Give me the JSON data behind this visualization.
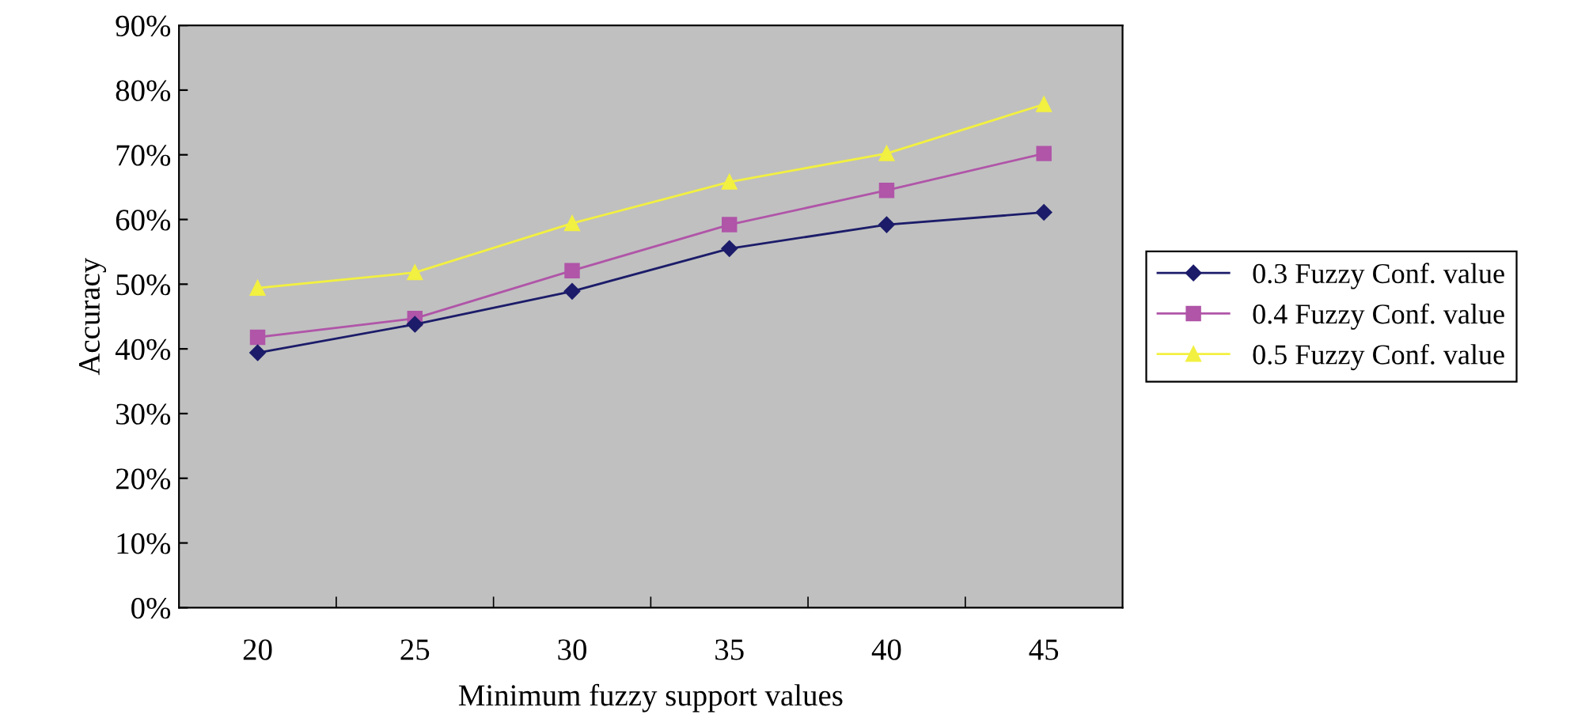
{
  "chart_data": {
    "type": "line",
    "xlabel": "Minimum fuzzy support values",
    "ylabel": "Accuracy",
    "categories": [
      "20",
      "25",
      "30",
      "35",
      "40",
      "45"
    ],
    "series": [
      {
        "name": "0.3 Fuzzy Conf. value",
        "color": "#1c1c6a",
        "marker": "diamond",
        "values": [
          39.4,
          43.8,
          48.9,
          55.5,
          59.2,
          61.1
        ]
      },
      {
        "name": "0.4 Fuzzy Conf. value",
        "color": "#b055a8",
        "marker": "square",
        "values": [
          41.8,
          44.7,
          52.1,
          59.2,
          64.5,
          70.2
        ]
      },
      {
        "name": "0.5 Fuzzy Conf. value",
        "color": "#f2f040",
        "marker": "triangle",
        "values": [
          49.4,
          51.8,
          59.4,
          65.8,
          70.2,
          77.8
        ]
      }
    ],
    "ylim": [
      0,
      90
    ],
    "yticks": [
      {
        "value": 0,
        "label": "0%"
      },
      {
        "value": 10,
        "label": "10%"
      },
      {
        "value": 20,
        "label": "20%"
      },
      {
        "value": 30,
        "label": "30%"
      },
      {
        "value": 40,
        "label": "40%"
      },
      {
        "value": 50,
        "label": "50%"
      },
      {
        "value": 60,
        "label": "60%"
      },
      {
        "value": 70,
        "label": "70%"
      },
      {
        "value": 80,
        "label": "80%"
      },
      {
        "value": 90,
        "label": "90%"
      }
    ],
    "grid": false,
    "legend": "right",
    "line_style": "solid"
  }
}
